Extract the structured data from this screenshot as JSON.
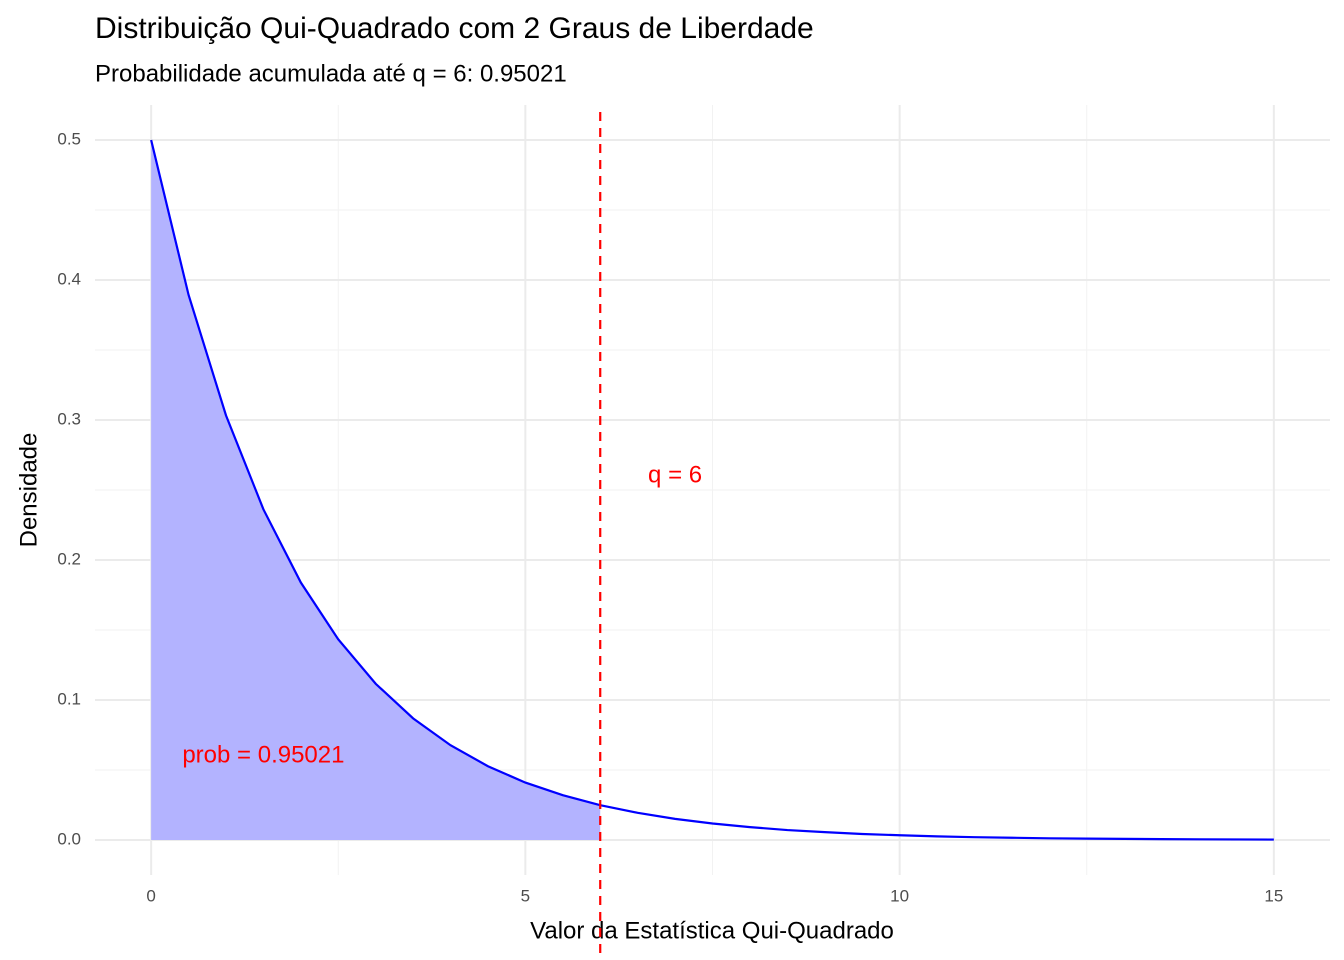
{
  "chart_data": {
    "type": "line",
    "title": "Distribuição Qui-Quadrado com 2 Graus de Liberdade",
    "subtitle": "Probabilidade acumulada até q = 6: 0.95021",
    "x_label": "Valor da Estatística Qui-Quadrado",
    "y_label": "Densidade",
    "x": [
      0,
      0.5,
      1,
      1.5,
      2,
      2.5,
      3,
      3.5,
      4,
      4.5,
      5,
      5.5,
      6,
      6.5,
      7,
      7.5,
      8,
      8.5,
      9,
      9.5,
      10,
      10.5,
      11,
      11.5,
      12,
      12.5,
      13,
      13.5,
      14,
      14.5,
      15
    ],
    "values": [
      0.5,
      0.3894,
      0.3033,
      0.2362,
      0.1839,
      0.1433,
      0.1116,
      0.0869,
      0.0677,
      0.0527,
      0.041,
      0.032,
      0.0249,
      0.0194,
      0.0151,
      0.0118,
      0.0092,
      0.0071,
      0.0056,
      0.0043,
      0.0034,
      0.0026,
      0.002,
      0.0016,
      0.0012,
      0.001,
      0.0008,
      0.0006,
      0.0005,
      0.0004,
      0.0003
    ],
    "color": "#0000ff",
    "fill_color": "#b3b3ff",
    "vline": {
      "value": 6,
      "color": "#ff0000",
      "dashed": true
    },
    "annotations": [
      {
        "text": "q = 6",
        "x": 7,
        "y": 0.26,
        "color": "#ff0000"
      },
      {
        "text": "prob = 0.95021",
        "x": 1.5,
        "y": 0.06,
        "color": "#ff0000"
      }
    ],
    "xlim": [
      -0.75,
      15.75
    ],
    "ylim": [
      -0.025,
      0.525
    ],
    "xticks": [
      0,
      5,
      10,
      15
    ],
    "yticks": [
      {
        "value": 0,
        "label": "0.0"
      },
      0.1,
      0.2,
      0.3,
      0.4,
      0.5
    ],
    "minor_xticks": [
      2.5,
      7.5,
      12.5
    ],
    "minor_yticks": [
      0.05,
      0.15,
      0.25,
      0.35,
      0.45
    ],
    "grid": true
  }
}
